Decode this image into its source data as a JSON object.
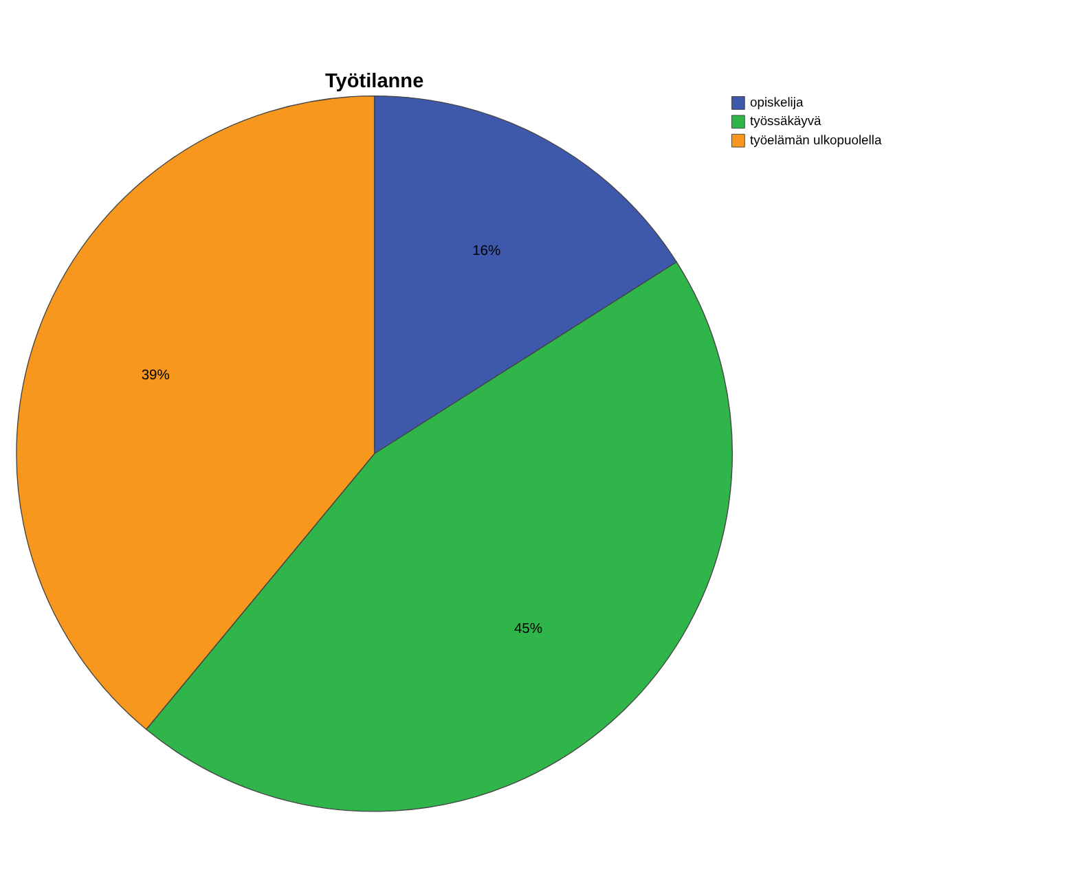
{
  "chart_data": {
    "type": "pie",
    "title": "Työtilanne",
    "categories": [
      "opiskelija",
      "työssäkäyvä",
      "työelämän ulkopuolella"
    ],
    "values": [
      16,
      45,
      39
    ],
    "colors": [
      "#3e58ac",
      "#2fb54a",
      "#f7971d"
    ],
    "value_labels": [
      "16%",
      "45%",
      "39%"
    ],
    "legend": "top right"
  }
}
